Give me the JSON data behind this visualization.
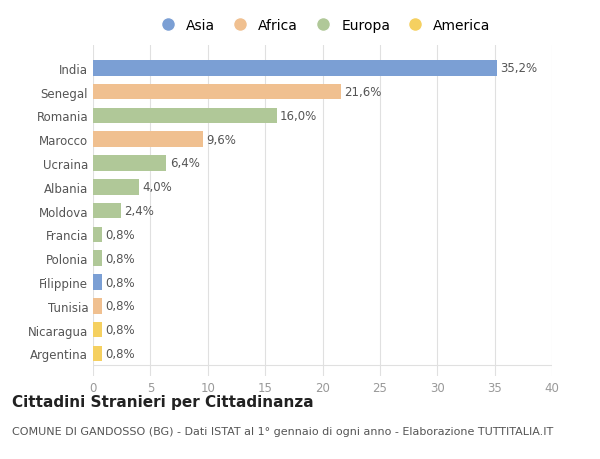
{
  "categories": [
    "India",
    "Senegal",
    "Romania",
    "Marocco",
    "Ucraina",
    "Albania",
    "Moldova",
    "Francia",
    "Polonia",
    "Filippine",
    "Tunisia",
    "Nicaragua",
    "Argentina"
  ],
  "values": [
    35.2,
    21.6,
    16.0,
    9.6,
    6.4,
    4.0,
    2.4,
    0.8,
    0.8,
    0.8,
    0.8,
    0.8,
    0.8
  ],
  "labels": [
    "35,2%",
    "21,6%",
    "16,0%",
    "9,6%",
    "6,4%",
    "4,0%",
    "2,4%",
    "0,8%",
    "0,8%",
    "0,8%",
    "0,8%",
    "0,8%",
    "0,8%"
  ],
  "colors": [
    "#7b9fd4",
    "#f0c090",
    "#b0c898",
    "#f0c090",
    "#b0c898",
    "#b0c898",
    "#b0c898",
    "#b0c898",
    "#b0c898",
    "#7b9fd4",
    "#f0c090",
    "#f5d060",
    "#f5d060"
  ],
  "legend_labels": [
    "Asia",
    "Africa",
    "Europa",
    "America"
  ],
  "legend_colors": [
    "#7b9fd4",
    "#f0c090",
    "#b0c898",
    "#f5d060"
  ],
  "title": "Cittadini Stranieri per Cittadinanza",
  "subtitle": "COMUNE DI GANDOSSO (BG) - Dati ISTAT al 1° gennaio di ogni anno - Elaborazione TUTTITALIA.IT",
  "xlim": [
    0,
    40
  ],
  "xticks": [
    0,
    5,
    10,
    15,
    20,
    25,
    30,
    35,
    40
  ],
  "background_color": "#ffffff",
  "grid_color": "#e0e0e0",
  "bar_height": 0.65,
  "title_fontsize": 11,
  "subtitle_fontsize": 8,
  "label_fontsize": 8.5,
  "tick_fontsize": 8.5,
  "legend_fontsize": 10
}
